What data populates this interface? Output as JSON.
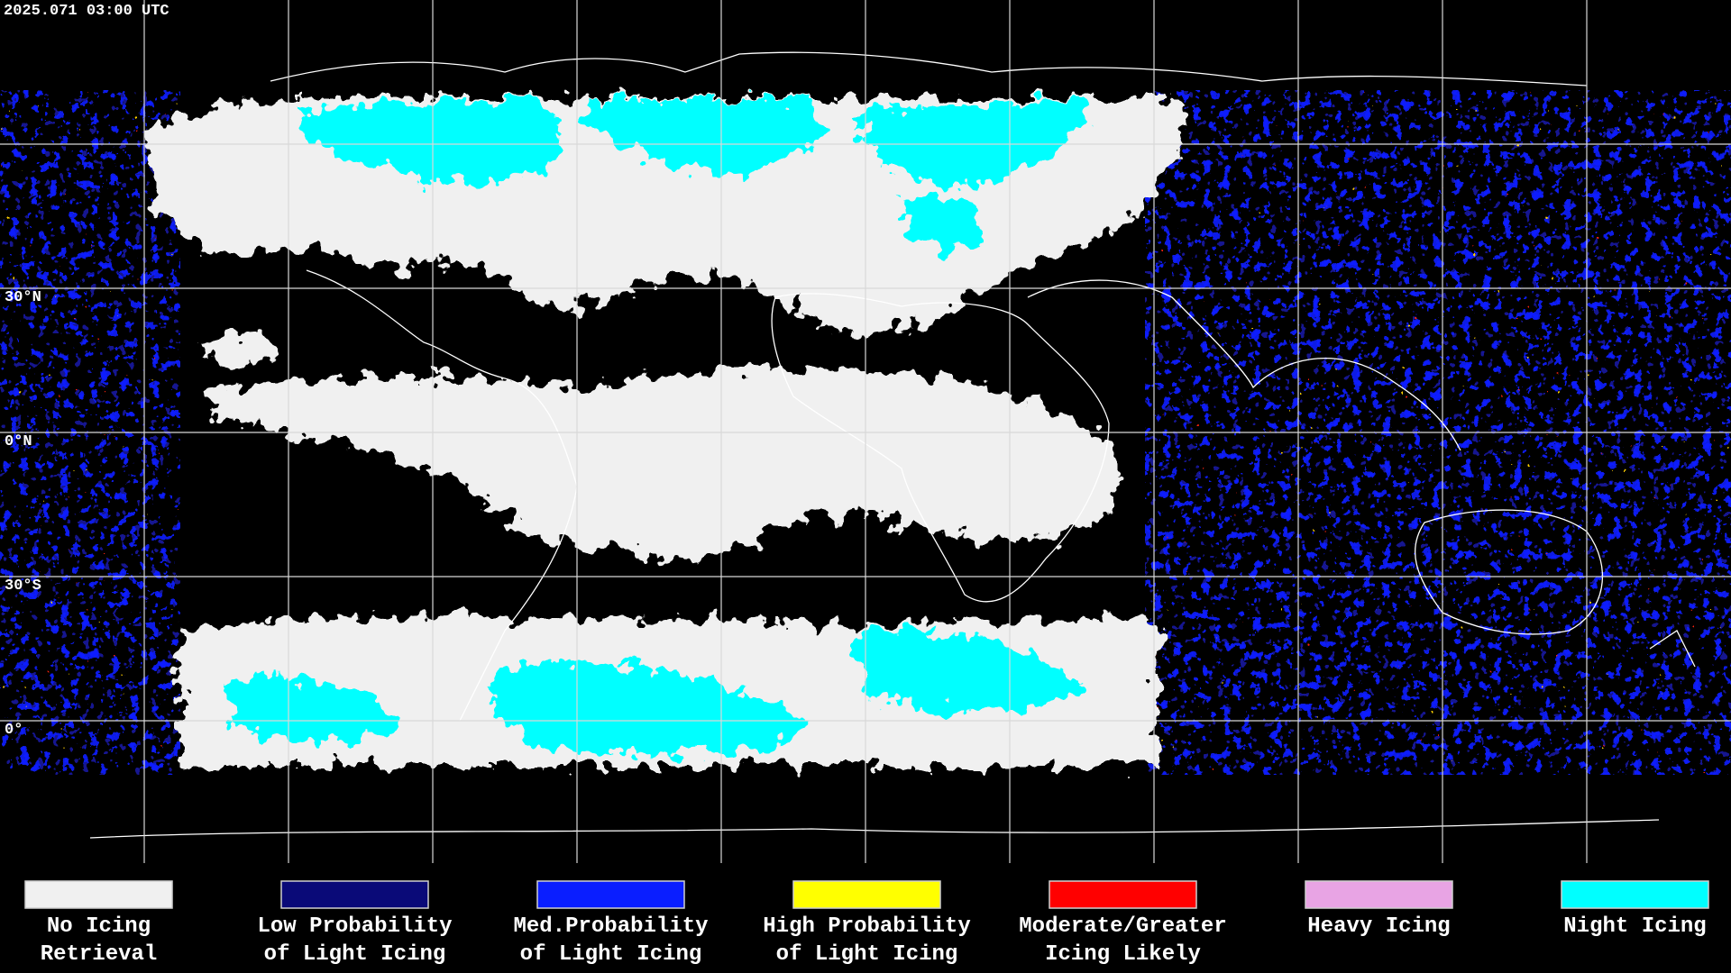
{
  "header": {
    "timestamp": "2025.071 03:00 UTC"
  },
  "lat_labels": [
    "30°N",
    "0°N",
    "30°S",
    "0°"
  ],
  "legend": {
    "items": [
      {
        "lines": [
          "No Icing",
          "Retrieval"
        ],
        "color": "#f0f0f0"
      },
      {
        "lines": [
          "Low Probability",
          "of Light Icing"
        ],
        "color": "#0a0a78"
      },
      {
        "lines": [
          "Med.Probability",
          "of Light Icing"
        ],
        "color": "#0a1eff"
      },
      {
        "lines": [
          "High Probability",
          "of Light Icing"
        ],
        "color": "#ffff00"
      },
      {
        "lines": [
          "Moderate/Greater",
          "Icing Likely"
        ],
        "color": "#ff0000"
      },
      {
        "lines": [
          "Heavy Icing"
        ],
        "color": "#e8a4e4"
      },
      {
        "lines": [
          "Night Icing"
        ],
        "color": "#00ffff"
      }
    ]
  }
}
